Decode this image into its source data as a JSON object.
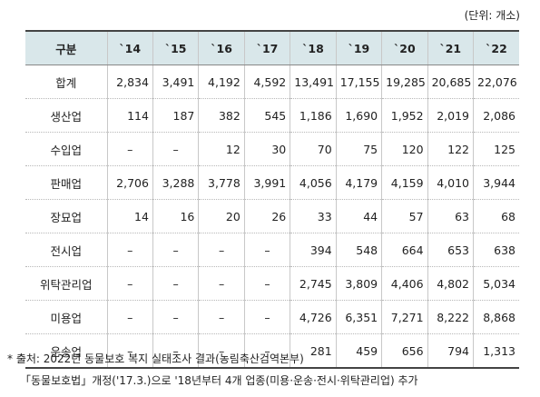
{
  "unit_label": "(단위: 개소)",
  "chart_data": {
    "type": "table",
    "columns": [
      "구분",
      "`14",
      "`15",
      "`16",
      "`17",
      "`18",
      "`19",
      "`20",
      "`21",
      "`22"
    ],
    "rows": [
      {
        "label": "합계",
        "values": [
          "2,834",
          "3,491",
          "4,192",
          "4,592",
          "13,491",
          "17,155",
          "19,285",
          "20,685",
          "22,076"
        ]
      },
      {
        "label": "생산업",
        "values": [
          "114",
          "187",
          "382",
          "545",
          "1,186",
          "1,690",
          "1,952",
          "2,019",
          "2,086"
        ]
      },
      {
        "label": "수입업",
        "values": [
          "–",
          "–",
          "12",
          "30",
          "70",
          "75",
          "120",
          "122",
          "125"
        ]
      },
      {
        "label": "판매업",
        "values": [
          "2,706",
          "3,288",
          "3,778",
          "3,991",
          "4,056",
          "4,179",
          "4,159",
          "4,010",
          "3,944"
        ]
      },
      {
        "label": "장묘업",
        "values": [
          "14",
          "16",
          "20",
          "26",
          "33",
          "44",
          "57",
          "63",
          "68"
        ]
      },
      {
        "label": "전시업",
        "values": [
          "–",
          "–",
          "–",
          "–",
          "394",
          "548",
          "664",
          "653",
          "638"
        ]
      },
      {
        "label": "위탁관리업",
        "values": [
          "–",
          "–",
          "–",
          "–",
          "2,745",
          "3,809",
          "4,406",
          "4,802",
          "5,034"
        ]
      },
      {
        "label": "미용업",
        "values": [
          "–",
          "–",
          "–",
          "–",
          "4,726",
          "6,351",
          "7,271",
          "8,222",
          "8,868"
        ]
      },
      {
        "label": "운송업",
        "values": [
          "–",
          "–",
          "–",
          "–",
          "281",
          "459",
          "656",
          "794",
          "1,313"
        ]
      }
    ]
  },
  "notes": {
    "source": "* 출처: 2022년 동물보호 복지 실태조사 결과(농림축산검역본부)",
    "amendment": "「동물보호법」개정('17.3.)으로 '18년부터 4개 업종(미용·운송·전시·위탁관리업) 추가"
  }
}
